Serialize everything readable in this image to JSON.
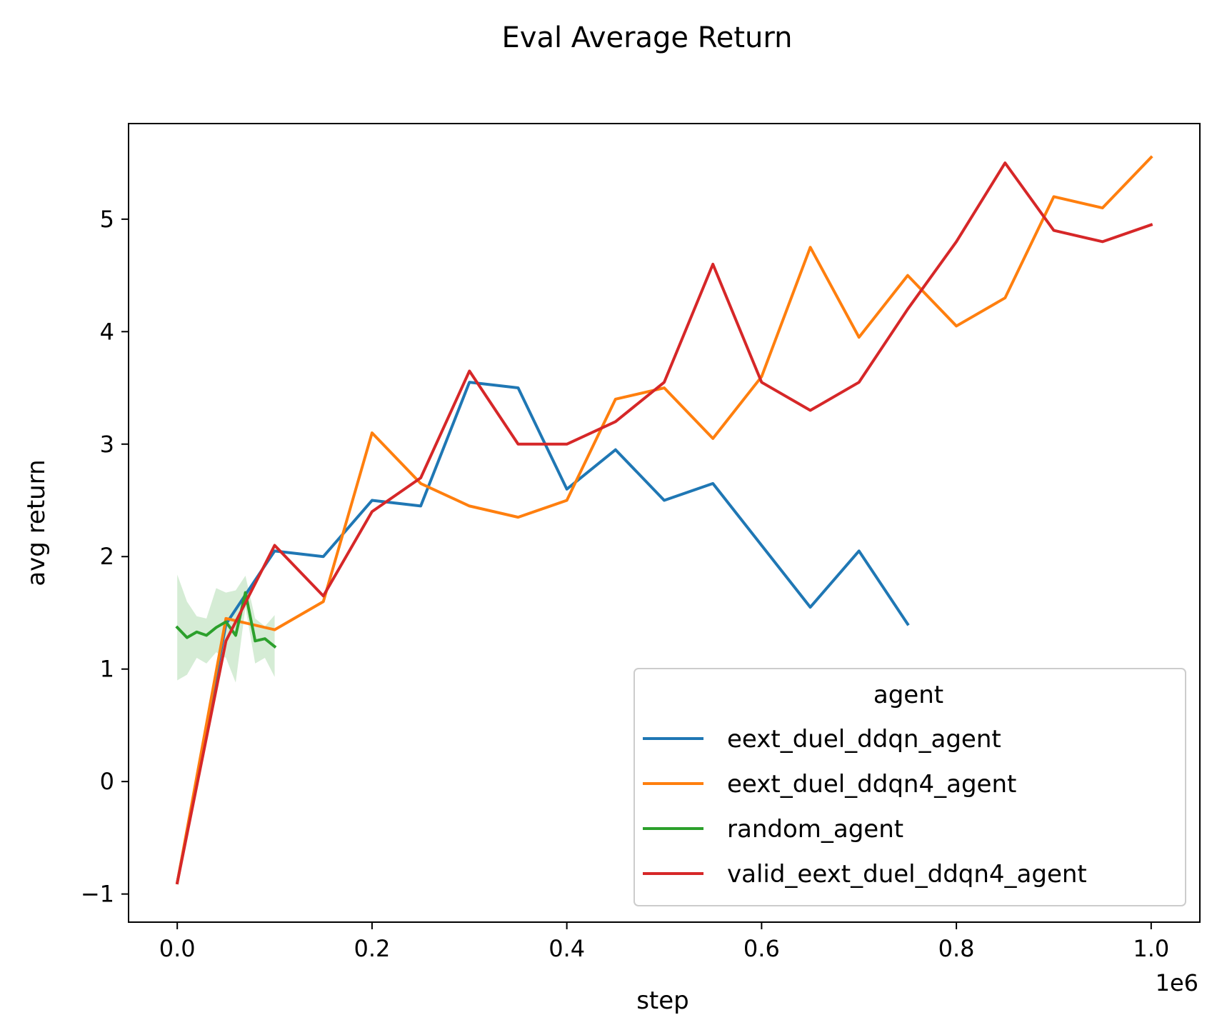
{
  "chart_data": {
    "type": "line",
    "title": "Eval Average Return",
    "xlabel": "step",
    "ylabel": "avg return",
    "x_offset_text": "1e6",
    "xlim": [
      -0.05,
      1.05
    ],
    "ylim": [
      -1.25,
      5.85
    ],
    "x_ticks": [
      0.0,
      0.2,
      0.4,
      0.6,
      0.8,
      1.0
    ],
    "x_tick_labels": [
      "0.0",
      "0.2",
      "0.4",
      "0.6",
      "0.8",
      "1.0"
    ],
    "y_ticks": [
      -1,
      0,
      1,
      2,
      3,
      4,
      5
    ],
    "y_tick_labels": [
      "−1",
      "0",
      "1",
      "2",
      "3",
      "4",
      "5"
    ],
    "grid": false,
    "legend": {
      "title": "agent",
      "placement": "lower-right"
    },
    "series": [
      {
        "name": "eext_duel_ddqn_agent",
        "color": "#1f77b4",
        "x": [
          0.0,
          0.05,
          0.1,
          0.15,
          0.2,
          0.25,
          0.3,
          0.35,
          0.4,
          0.45,
          0.5,
          0.55,
          0.6,
          0.65,
          0.7,
          0.75
        ],
        "y": [
          -0.9,
          1.4,
          2.05,
          2.0,
          2.5,
          2.45,
          3.55,
          3.5,
          2.6,
          2.95,
          2.5,
          2.65,
          2.1,
          1.55,
          2.05,
          1.4
        ]
      },
      {
        "name": "eext_duel_ddqn4_agent",
        "color": "#ff7f0e",
        "x": [
          0.0,
          0.05,
          0.1,
          0.15,
          0.2,
          0.25,
          0.3,
          0.35,
          0.4,
          0.45,
          0.5,
          0.55,
          0.6,
          0.65,
          0.7,
          0.75,
          0.8,
          0.85,
          0.9,
          0.95,
          1.0
        ],
        "y": [
          -0.9,
          1.45,
          1.35,
          1.6,
          3.1,
          2.65,
          2.45,
          2.35,
          2.5,
          3.4,
          3.5,
          3.05,
          3.6,
          4.75,
          3.95,
          4.5,
          4.05,
          4.3,
          5.2,
          5.1,
          5.55
        ]
      },
      {
        "name": "random_agent",
        "color": "#2ca02c",
        "x": [
          0.0,
          0.01,
          0.02,
          0.03,
          0.04,
          0.05,
          0.06,
          0.07,
          0.08,
          0.09,
          0.1
        ],
        "y": [
          1.37,
          1.28,
          1.33,
          1.3,
          1.37,
          1.42,
          1.3,
          1.68,
          1.25,
          1.27,
          1.2
        ],
        "ci_lower": [
          0.9,
          0.95,
          1.1,
          1.05,
          1.15,
          1.1,
          0.88,
          1.55,
          1.05,
          1.1,
          0.93
        ],
        "ci_upper": [
          1.84,
          1.6,
          1.47,
          1.45,
          1.72,
          1.68,
          1.7,
          1.83,
          1.45,
          1.38,
          1.48
        ]
      },
      {
        "name": "valid_eext_duel_ddqn4_agent",
        "color": "#d62728",
        "x": [
          0.0,
          0.05,
          0.1,
          0.15,
          0.2,
          0.25,
          0.3,
          0.35,
          0.4,
          0.45,
          0.5,
          0.55,
          0.6,
          0.65,
          0.7,
          0.75,
          0.8,
          0.85,
          0.9,
          0.95,
          1.0
        ],
        "y": [
          -0.9,
          1.25,
          2.1,
          1.65,
          2.4,
          2.7,
          3.65,
          3.0,
          3.0,
          3.2,
          3.55,
          4.6,
          3.55,
          3.3,
          3.55,
          4.2,
          4.8,
          5.5,
          4.9,
          4.8,
          4.95
        ]
      }
    ]
  }
}
